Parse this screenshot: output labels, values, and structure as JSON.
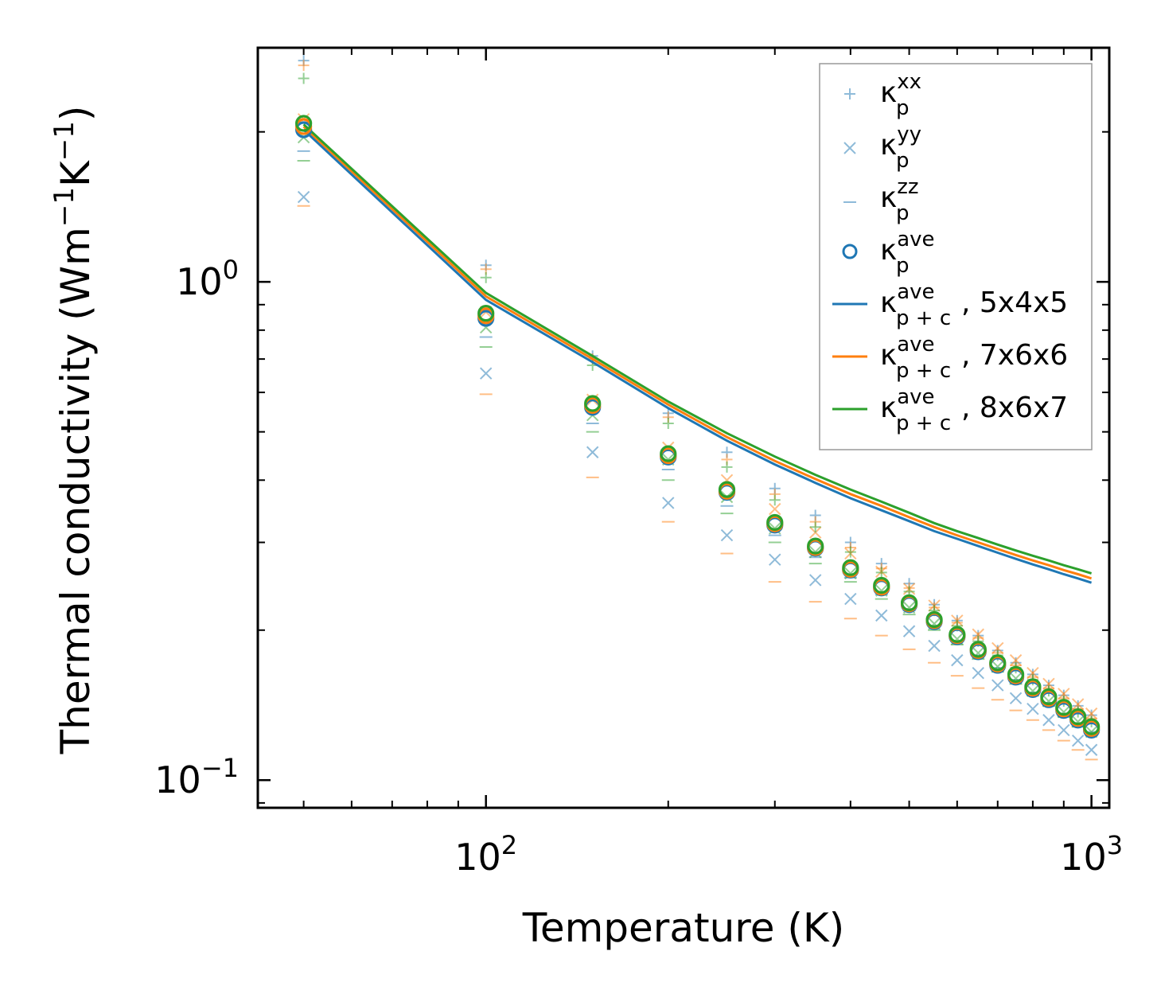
{
  "chart_data": {
    "type": "scatter",
    "xscale": "log",
    "yscale": "log",
    "xlabel": "Temperature (K)",
    "ylabel": "Thermal conductivity (Wm",
    "ylabel_unit_parts": [
      "−1",
      "K",
      "−1",
      ")"
    ],
    "xlim": [
      42,
      1070
    ],
    "ylim": [
      0.088,
      2.95
    ],
    "x_ticks": [
      {
        "value": 100,
        "base": "10",
        "exp": "2"
      },
      {
        "value": 1000,
        "base": "10",
        "exp": "3"
      }
    ],
    "y_ticks": [
      {
        "value": 0.1,
        "base": "10",
        "exp": "−1"
      },
      {
        "value": 1,
        "base": "10",
        "exp": "0"
      }
    ],
    "colors": {
      "blue": "#1f77b4",
      "orange": "#ff7f0e",
      "green": "#2ca02c"
    },
    "x": [
      50,
      100,
      150,
      200,
      250,
      300,
      350,
      400,
      450,
      500,
      550,
      600,
      650,
      700,
      750,
      800,
      850,
      900,
      950,
      1000
    ],
    "series": [
      {
        "name": "5x4x5",
        "color": "#1f77b4",
        "line": [
          2.02,
          0.92,
          0.69,
          0.558,
          0.48,
          0.43,
          0.395,
          0.368,
          0.348,
          0.331,
          0.316,
          0.305,
          0.295,
          0.286,
          0.278,
          0.271,
          0.265,
          0.259,
          0.254,
          0.249
        ],
        "ave": [
          2.02,
          0.845,
          0.56,
          0.445,
          0.378,
          0.325,
          0.292,
          0.264,
          0.243,
          0.225,
          0.208,
          0.194,
          0.181,
          0.17,
          0.161,
          0.152,
          0.145,
          0.138,
          0.132,
          0.126
        ],
        "xx": [
          2.78,
          1.08,
          0.71,
          0.545,
          0.455,
          0.385,
          0.34,
          0.3,
          0.272,
          0.248,
          0.225,
          0.209,
          0.195,
          0.182,
          0.172,
          0.163,
          0.155,
          0.148,
          0.141,
          0.135
        ],
        "yy": [
          1.48,
          0.655,
          0.455,
          0.36,
          0.31,
          0.277,
          0.252,
          0.231,
          0.214,
          0.199,
          0.186,
          0.174,
          0.164,
          0.155,
          0.146,
          0.139,
          0.132,
          0.126,
          0.12,
          0.115
        ],
        "zz": [
          1.83,
          0.775,
          0.52,
          0.42,
          0.355,
          0.31,
          0.28,
          0.255,
          0.236,
          0.219,
          0.204,
          0.19,
          0.178,
          0.168,
          0.159,
          0.15,
          0.143,
          0.136,
          0.13,
          0.125
        ]
      },
      {
        "name": "7x6x6",
        "color": "#ff7f0e",
        "line": [
          2.05,
          0.935,
          0.7,
          0.567,
          0.488,
          0.437,
          0.402,
          0.375,
          0.355,
          0.337,
          0.322,
          0.31,
          0.3,
          0.291,
          0.283,
          0.276,
          0.27,
          0.264,
          0.259,
          0.254
        ],
        "ave": [
          2.05,
          0.855,
          0.565,
          0.448,
          0.38,
          0.327,
          0.293,
          0.265,
          0.244,
          0.226,
          0.209,
          0.195,
          0.182,
          0.171,
          0.162,
          0.153,
          0.146,
          0.139,
          0.133,
          0.127
        ],
        "xx": [
          2.72,
          1.06,
          0.7,
          0.535,
          0.44,
          0.375,
          0.33,
          0.293,
          0.266,
          0.243,
          0.222,
          0.207,
          0.193,
          0.18,
          0.17,
          0.161,
          0.153,
          0.146,
          0.139,
          0.133
        ],
        "yy": [
          2.12,
          0.87,
          0.58,
          0.465,
          0.4,
          0.35,
          0.314,
          0.285,
          0.262,
          0.242,
          0.224,
          0.209,
          0.196,
          0.184,
          0.174,
          0.164,
          0.156,
          0.149,
          0.142,
          0.136
        ],
        "zz": [
          1.42,
          0.595,
          0.405,
          0.33,
          0.285,
          0.25,
          0.228,
          0.211,
          0.195,
          0.183,
          0.172,
          0.162,
          0.153,
          0.145,
          0.138,
          0.132,
          0.126,
          0.12,
          0.115,
          0.11
        ]
      },
      {
        "name": "8x6x7",
        "color": "#2ca02c",
        "line": [
          2.07,
          0.95,
          0.71,
          0.575,
          0.497,
          0.446,
          0.41,
          0.383,
          0.362,
          0.344,
          0.328,
          0.316,
          0.306,
          0.297,
          0.289,
          0.282,
          0.276,
          0.27,
          0.265,
          0.26
        ],
        "ave": [
          2.08,
          0.865,
          0.57,
          0.452,
          0.383,
          0.329,
          0.295,
          0.267,
          0.246,
          0.227,
          0.21,
          0.196,
          0.183,
          0.172,
          0.163,
          0.154,
          0.147,
          0.14,
          0.134,
          0.128
        ],
        "xx": [
          2.56,
          1.02,
          0.68,
          0.52,
          0.425,
          0.365,
          0.322,
          0.287,
          0.261,
          0.239,
          0.219,
          0.204,
          0.19,
          0.178,
          0.168,
          0.159,
          0.151,
          0.144,
          0.137,
          0.131
        ],
        "yy": [
          1.95,
          0.81,
          0.54,
          0.44,
          0.37,
          0.32,
          0.287,
          0.26,
          0.24,
          0.222,
          0.206,
          0.192,
          0.18,
          0.169,
          0.16,
          0.151,
          0.144,
          0.137,
          0.131,
          0.125
        ],
        "zz": [
          1.75,
          0.74,
          0.5,
          0.4,
          0.343,
          0.3,
          0.272,
          0.25,
          0.231,
          0.215,
          0.2,
          0.187,
          0.175,
          0.165,
          0.156,
          0.148,
          0.141,
          0.134,
          0.128,
          0.123
        ]
      }
    ],
    "legend": {
      "position": "top-right",
      "entries": [
        {
          "symbol": "plus",
          "color": "#1f77b4",
          "base": "κ",
          "sub": "p",
          "sup": "xx",
          "suffix": ""
        },
        {
          "symbol": "x",
          "color": "#1f77b4",
          "base": "κ",
          "sub": "p",
          "sup": "yy",
          "suffix": ""
        },
        {
          "symbol": "dash",
          "color": "#1f77b4",
          "base": "κ",
          "sub": "p",
          "sup": "zz",
          "suffix": ""
        },
        {
          "symbol": "circle",
          "color": "#1f77b4",
          "base": "κ",
          "sub": "p",
          "sup": "ave",
          "suffix": ""
        },
        {
          "symbol": "line",
          "color": "#1f77b4",
          "base": "κ",
          "sub": "p + c",
          "sup": "ave",
          "suffix": ", 5x4x5"
        },
        {
          "symbol": "line",
          "color": "#ff7f0e",
          "base": "κ",
          "sub": "p + c",
          "sup": "ave",
          "suffix": ", 7x6x6"
        },
        {
          "symbol": "line",
          "color": "#2ca02c",
          "base": "κ",
          "sub": "p + c",
          "sup": "ave",
          "suffix": ", 8x6x7"
        }
      ]
    }
  }
}
